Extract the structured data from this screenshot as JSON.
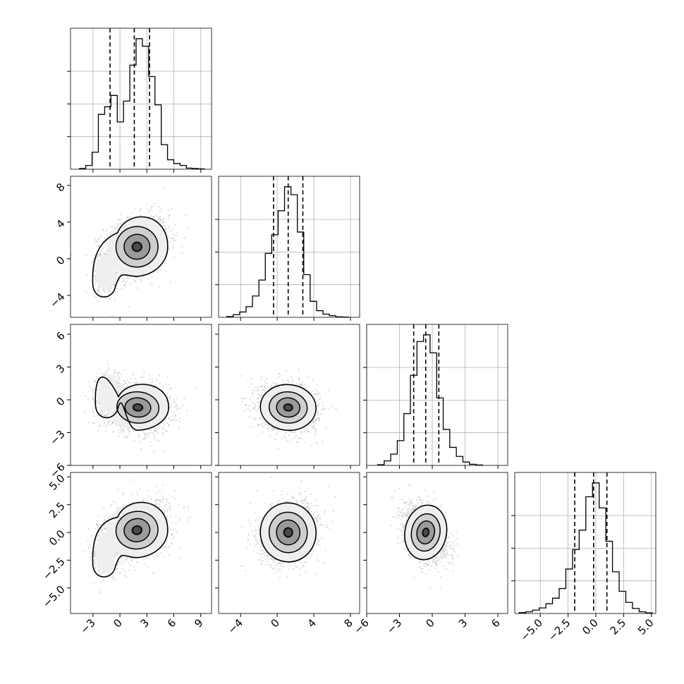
{
  "chart_data": {
    "type": "corner",
    "parameters": 4,
    "grid": true,
    "colors": {
      "axis": "#000000",
      "grid": "#b0b0b0",
      "points": "#bdbdbd",
      "contour": "#000000",
      "density_dark": "#2f2f2f",
      "density_light": "#f4f4f4",
      "quantile_line": "#000000"
    },
    "axes": [
      {
        "range": [
          -5.5,
          10.2
        ],
        "ticks": [
          -3,
          0,
          3,
          6,
          9
        ],
        "tick_labels": [
          "−3",
          "0",
          "3",
          "6",
          "9"
        ]
      },
      {
        "range": [
          -6.4,
          9.0
        ],
        "ticks": [
          -4,
          0,
          4,
          8
        ],
        "tick_labels": [
          "−4",
          "0",
          "4",
          "8"
        ]
      },
      {
        "range": [
          -6.0,
          6.9
        ],
        "ticks": [
          -6,
          -3,
          0,
          3,
          6
        ],
        "tick_labels": [
          "−6",
          "−3",
          "0",
          "3",
          "6"
        ]
      },
      {
        "range": [
          -7.3,
          5.4
        ],
        "ticks": [
          -5.0,
          -2.5,
          0.0,
          2.5,
          5.0
        ],
        "tick_labels": [
          "−5.0",
          "−2.5",
          "0.0",
          "2.5",
          "5.0"
        ]
      }
    ],
    "histograms": [
      {
        "param": 0,
        "bin_edges": [
          -4.5,
          -3.8,
          -3.1,
          -2.4,
          -1.7,
          -1.0,
          -0.3,
          0.4,
          1.1,
          1.8,
          2.5,
          3.2,
          3.9,
          4.6,
          5.3,
          6.0,
          6.7,
          7.4,
          8.0,
          8.7,
          9.4
        ],
        "counts": [
          2,
          10,
          45,
          145,
          165,
          195,
          125,
          180,
          275,
          345,
          325,
          245,
          170,
          65,
          25,
          15,
          10,
          3,
          2,
          1
        ],
        "quantiles": [
          -1.1,
          1.6,
          3.3
        ]
      },
      {
        "param": 1,
        "bin_edges": [
          -5.5,
          -4.8,
          -4.1,
          -3.4,
          -2.7,
          -2.0,
          -1.3,
          -0.6,
          0.1,
          0.8,
          1.5,
          2.2,
          2.9,
          3.6,
          4.3,
          5.0,
          5.7,
          6.4,
          7.1,
          7.8
        ],
        "counts": [
          3,
          10,
          20,
          40,
          80,
          140,
          240,
          310,
          400,
          490,
          460,
          320,
          160,
          60,
          25,
          12,
          6,
          2,
          1
        ],
        "quantiles": [
          -0.4,
          1.2,
          2.8
        ]
      },
      {
        "param": 2,
        "bin_edges": [
          -5.0,
          -4.4,
          -3.8,
          -3.2,
          -2.6,
          -2.0,
          -1.4,
          -0.8,
          -0.2,
          0.4,
          1.0,
          1.6,
          2.2,
          2.8,
          3.4,
          4.0,
          4.6
        ],
        "counts": [
          3,
          20,
          50,
          110,
          230,
          400,
          550,
          580,
          500,
          300,
          160,
          80,
          40,
          15,
          5,
          2
        ],
        "quantiles": [
          -1.7,
          -0.6,
          0.6
        ]
      },
      {
        "param": 3,
        "bin_edges": [
          -6.9,
          -6.3,
          -5.7,
          -5.1,
          -4.5,
          -3.9,
          -3.3,
          -2.7,
          -2.1,
          -1.5,
          -0.9,
          -0.3,
          0.3,
          0.9,
          1.5,
          2.1,
          2.7,
          3.3,
          3.9,
          4.5,
          5.1
        ],
        "counts": [
          3,
          6,
          12,
          20,
          35,
          55,
          90,
          160,
          230,
          300,
          420,
          470,
          380,
          260,
          150,
          80,
          40,
          18,
          6,
          2
        ],
        "quantiles": [
          -1.9,
          -0.2,
          1.0
        ]
      }
    ],
    "pairs": [
      {
        "x_param": 0,
        "y_param": 1,
        "center": [
          1.9,
          1.3
        ],
        "spread": [
          1.8,
          1.7
        ],
        "corr": 0.25,
        "tail": {
          "center": [
            -1.6,
            -1.5
          ],
          "spread": [
            0.7,
            1.2
          ]
        }
      },
      {
        "x_param": 0,
        "y_param": 2,
        "center": [
          2.0,
          -0.7
        ],
        "spread": [
          1.8,
          1.1
        ],
        "corr": -0.15,
        "tail": {
          "center": [
            -1.3,
            0.6
          ],
          "spread": [
            0.7,
            1.1
          ]
        }
      },
      {
        "x_param": 1,
        "y_param": 2,
        "center": [
          1.2,
          -0.7
        ],
        "spread": [
          1.6,
          1.1
        ],
        "corr": -0.15
      },
      {
        "x_param": 0,
        "y_param": 3,
        "center": [
          1.9,
          0.2
        ],
        "spread": [
          1.8,
          1.3
        ],
        "corr": 0.3,
        "tail": {
          "center": [
            -1.6,
            -1.8
          ],
          "spread": [
            0.7,
            1.1
          ]
        }
      },
      {
        "x_param": 1,
        "y_param": 3,
        "center": [
          1.2,
          0.0
        ],
        "spread": [
          1.6,
          1.4
        ],
        "corr": 0.2
      },
      {
        "x_param": 2,
        "y_param": 3,
        "center": [
          -0.6,
          0.0
        ],
        "spread": [
          1.0,
          1.3
        ],
        "corr": -0.35
      }
    ]
  }
}
